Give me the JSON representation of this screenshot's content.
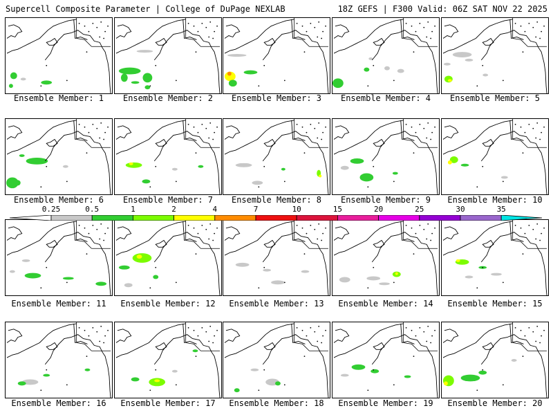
{
  "header": {
    "title": "Supercell Composite Parameter | College of DuPage NEXLAB",
    "run_info": "18Z GEFS | F300 Valid: 06Z SAT NOV 22 2025"
  },
  "colorbar": {
    "labels": [
      "0.25",
      "0.5",
      "1",
      "2",
      "4",
      "7",
      "10",
      "15",
      "20",
      "25",
      "30",
      "35"
    ],
    "colors": [
      "#c8c8c8",
      "#32cd32",
      "#7cfc00",
      "#ffff00",
      "#ff8c00",
      "#ee1111",
      "#dc143c",
      "#e81e9c",
      "#e600e6",
      "#9400d3",
      "#9966cc",
      "#00e5e5"
    ]
  },
  "members": [
    {
      "label": "Ensemble Member: 1"
    },
    {
      "label": "Ensemble Member: 2"
    },
    {
      "label": "Ensemble Member: 3"
    },
    {
      "label": "Ensemble Member: 4"
    },
    {
      "label": "Ensemble Member: 5"
    },
    {
      "label": "Ensemble Member: 6"
    },
    {
      "label": "Ensemble Member: 7"
    },
    {
      "label": "Ensemble Member: 8"
    },
    {
      "label": "Ensemble Member: 9"
    },
    {
      "label": "Ensemble Member: 10"
    },
    {
      "label": "Ensemble Member: 11"
    },
    {
      "label": "Ensemble Member: 12"
    },
    {
      "label": "Ensemble Member: 13"
    },
    {
      "label": "Ensemble Member: 14"
    },
    {
      "label": "Ensemble Member: 15"
    },
    {
      "label": "Ensemble Member: 16"
    },
    {
      "label": "Ensemble Member: 17"
    },
    {
      "label": "Ensemble Member: 18"
    },
    {
      "label": "Ensemble Member: 19"
    },
    {
      "label": "Ensemble Member: 20"
    }
  ]
}
